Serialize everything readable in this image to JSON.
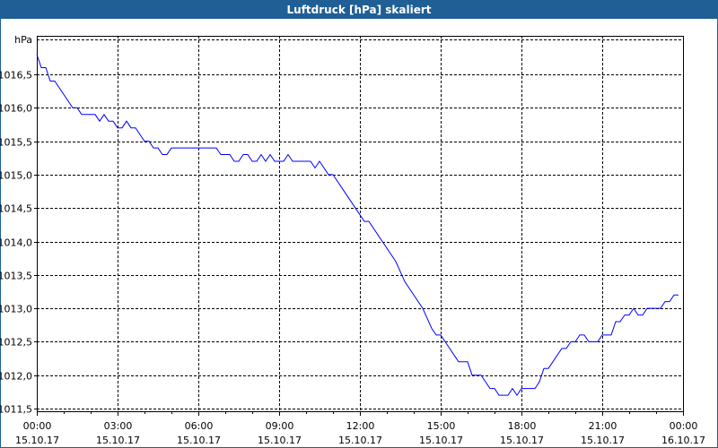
{
  "window": {
    "title": "Luftdruck [hPa] skaliert"
  },
  "chart_data": {
    "type": "line",
    "title": "Luftdruck [hPa] skaliert",
    "ylabel": "hPa",
    "xlabel": "",
    "ylim": [
      1011.5,
      1017.0
    ],
    "xlim_minutes": [
      0,
      1440
    ],
    "y_ticks": [
      {
        "value": 1011.5,
        "label": "1011,5"
      },
      {
        "value": 1012.0,
        "label": "1012,0"
      },
      {
        "value": 1012.5,
        "label": "1012,5"
      },
      {
        "value": 1013.0,
        "label": "1013,0"
      },
      {
        "value": 1013.5,
        "label": "1013,5"
      },
      {
        "value": 1014.0,
        "label": "1014,0"
      },
      {
        "value": 1014.5,
        "label": "1014,5"
      },
      {
        "value": 1015.0,
        "label": "1015,0"
      },
      {
        "value": 1015.5,
        "label": "1015,5"
      },
      {
        "value": 1016.0,
        "label": "1016,0"
      },
      {
        "value": 1016.5,
        "label": "1016,5"
      }
    ],
    "x_ticks": [
      {
        "minute": 0,
        "time": "00:00",
        "date": "15.10.17"
      },
      {
        "minute": 180,
        "time": "03:00",
        "date": "15.10.17"
      },
      {
        "minute": 360,
        "time": "06:00",
        "date": "15.10.17"
      },
      {
        "minute": 540,
        "time": "09:00",
        "date": "15.10.17"
      },
      {
        "minute": 720,
        "time": "12:00",
        "date": "15.10.17"
      },
      {
        "minute": 900,
        "time": "15:00",
        "date": "15.10.17"
      },
      {
        "minute": 1080,
        "time": "18:00",
        "date": "15.10.17"
      },
      {
        "minute": 1260,
        "time": "21:00",
        "date": "15.10.17"
      },
      {
        "minute": 1440,
        "time": "00:00",
        "date": "16.10.17"
      }
    ],
    "grid": true,
    "series": [
      {
        "name": "Luftdruck",
        "color": "#0000ff",
        "points": [
          [
            0,
            1016.8
          ],
          [
            10,
            1016.6
          ],
          [
            20,
            1016.6
          ],
          [
            30,
            1016.4
          ],
          [
            40,
            1016.4
          ],
          [
            80,
            1016.0
          ],
          [
            90,
            1016.0
          ],
          [
            100,
            1015.9
          ],
          [
            130,
            1015.9
          ],
          [
            140,
            1015.8
          ],
          [
            150,
            1015.9
          ],
          [
            160,
            1015.8
          ],
          [
            170,
            1015.8
          ],
          [
            180,
            1015.7
          ],
          [
            190,
            1015.7
          ],
          [
            200,
            1015.8
          ],
          [
            210,
            1015.7
          ],
          [
            220,
            1015.7
          ],
          [
            240,
            1015.5
          ],
          [
            250,
            1015.5
          ],
          [
            260,
            1015.4
          ],
          [
            270,
            1015.4
          ],
          [
            280,
            1015.3
          ],
          [
            290,
            1015.3
          ],
          [
            300,
            1015.4
          ],
          [
            400,
            1015.4
          ],
          [
            410,
            1015.3
          ],
          [
            430,
            1015.3
          ],
          [
            440,
            1015.2
          ],
          [
            450,
            1015.2
          ],
          [
            460,
            1015.3
          ],
          [
            470,
            1015.3
          ],
          [
            480,
            1015.2
          ],
          [
            490,
            1015.2
          ],
          [
            500,
            1015.3
          ],
          [
            510,
            1015.2
          ],
          [
            520,
            1015.3
          ],
          [
            530,
            1015.2
          ],
          [
            550,
            1015.2
          ],
          [
            560,
            1015.3
          ],
          [
            570,
            1015.2
          ],
          [
            610,
            1015.2
          ],
          [
            620,
            1015.1
          ],
          [
            630,
            1015.2
          ],
          [
            650,
            1015.0
          ],
          [
            660,
            1015.0
          ],
          [
            720,
            1014.4
          ],
          [
            730,
            1014.3
          ],
          [
            740,
            1014.3
          ],
          [
            800,
            1013.7
          ],
          [
            820,
            1013.4
          ],
          [
            860,
            1013.0
          ],
          [
            880,
            1012.7
          ],
          [
            890,
            1012.6
          ],
          [
            900,
            1012.6
          ],
          [
            920,
            1012.4
          ],
          [
            940,
            1012.2
          ],
          [
            960,
            1012.2
          ],
          [
            970,
            1012.0
          ],
          [
            990,
            1012.0
          ],
          [
            1010,
            1011.8
          ],
          [
            1020,
            1011.8
          ],
          [
            1030,
            1011.7
          ],
          [
            1050,
            1011.7
          ],
          [
            1060,
            1011.8
          ],
          [
            1070,
            1011.7
          ],
          [
            1080,
            1011.8
          ],
          [
            1110,
            1011.8
          ],
          [
            1120,
            1011.9
          ],
          [
            1130,
            1012.1
          ],
          [
            1140,
            1012.1
          ],
          [
            1170,
            1012.4
          ],
          [
            1180,
            1012.4
          ],
          [
            1190,
            1012.5
          ],
          [
            1200,
            1012.5
          ],
          [
            1210,
            1012.6
          ],
          [
            1220,
            1012.6
          ],
          [
            1230,
            1012.5
          ],
          [
            1250,
            1012.5
          ],
          [
            1260,
            1012.6
          ],
          [
            1280,
            1012.6
          ],
          [
            1290,
            1012.8
          ],
          [
            1300,
            1012.8
          ],
          [
            1310,
            1012.9
          ],
          [
            1320,
            1012.9
          ],
          [
            1330,
            1013.0
          ],
          [
            1340,
            1012.9
          ],
          [
            1350,
            1012.9
          ],
          [
            1360,
            1013.0
          ],
          [
            1390,
            1013.0
          ],
          [
            1400,
            1013.1
          ],
          [
            1410,
            1013.1
          ],
          [
            1420,
            1013.2
          ],
          [
            1430,
            1013.2
          ]
        ]
      }
    ]
  }
}
